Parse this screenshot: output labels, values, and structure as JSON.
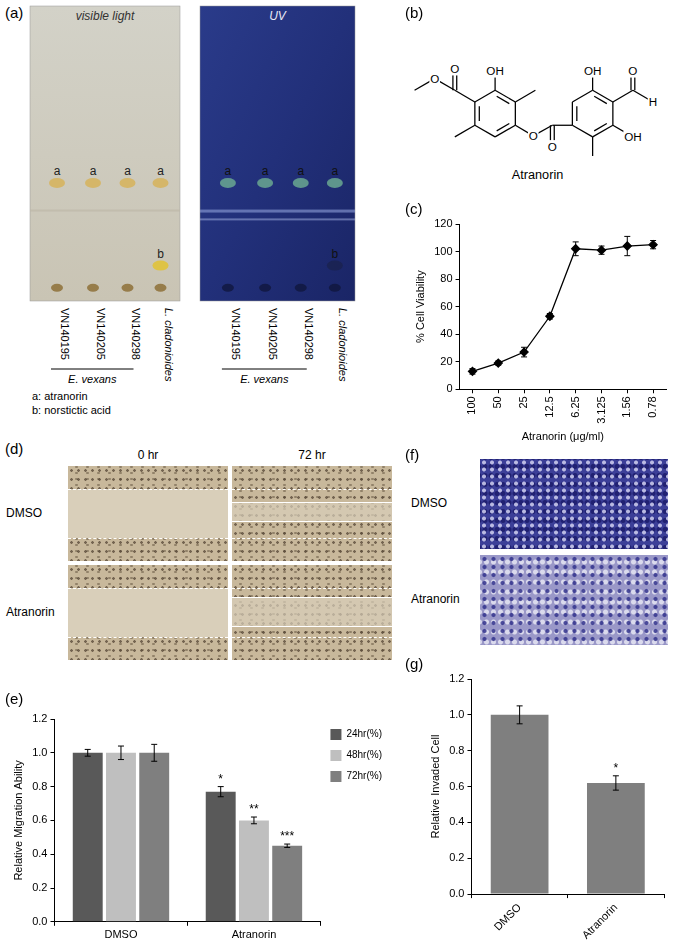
{
  "panel_labels": [
    "(a)",
    "(b)",
    "(c)",
    "(d)",
    "(e)",
    "(f)",
    "(g)"
  ],
  "tlc": {
    "panels": [
      "visible light",
      "UV"
    ],
    "lanes": [
      {
        "name": "VN140195",
        "spots": [
          "a"
        ]
      },
      {
        "name": "VN140205",
        "spots": [
          "a"
        ]
      },
      {
        "name": "VN140298",
        "spots": [
          "a"
        ]
      },
      {
        "name": "L. cladonioides",
        "spots": [
          "a",
          "b"
        ]
      }
    ],
    "group": {
      "name": "E. vexans",
      "members": [
        "VN140195",
        "VN140205",
        "VN140298"
      ]
    },
    "key": [
      "a: atranorin",
      "b: norstictic acid"
    ]
  },
  "structure": {
    "name": "Atranorin",
    "atoms": [
      "O",
      "O",
      "OH",
      "O",
      "O",
      "OH",
      "O",
      "H",
      "OH"
    ]
  },
  "wound": {
    "columns": [
      "0 hr",
      "72 hr"
    ],
    "rows": [
      "DMSO",
      "Atranorin"
    ]
  },
  "invasion": {
    "rows": [
      "DMSO",
      "Atranorin"
    ]
  },
  "chart_data": [
    {
      "type": "line",
      "categories": [
        "100",
        "50",
        "25",
        "12.5",
        "6.25",
        "3.125",
        "1.56",
        "0.78"
      ],
      "values": [
        13,
        19,
        27,
        53,
        102,
        101,
        104,
        105
      ],
      "errors": [
        2,
        1.5,
        3.5,
        2,
        5,
        3,
        7,
        3
      ],
      "color": "#000000",
      "marker": "diamond",
      "x_label": "Atranorin (μg/ml)",
      "y_label": "% Cell Viability",
      "ylim": [
        0,
        120
      ],
      "yticks": [
        0,
        20,
        40,
        60,
        80,
        100,
        120
      ],
      "grid": false
    },
    {
      "type": "bar",
      "categories": [
        "DMSO",
        "Atranorin"
      ],
      "series": [
        {
          "name": "24hr(%)",
          "color": "#595959",
          "values": [
            1.0,
            0.77
          ],
          "errors": [
            0.02,
            0.03
          ],
          "significance": [
            null,
            "*"
          ]
        },
        {
          "name": "48hr(%)",
          "color": "#bfbfbf",
          "values": [
            1.0,
            0.6
          ],
          "errors": [
            0.04,
            0.02
          ],
          "significance": [
            null,
            "**"
          ]
        },
        {
          "name": "72hr(%)",
          "color": "#7f7f7f",
          "values": [
            1.0,
            0.45
          ],
          "errors": [
            0.05,
            0.01
          ],
          "significance": [
            null,
            "***"
          ]
        }
      ],
      "y_label": "Relative Migration Ability",
      "ylim": [
        0,
        1.2
      ],
      "yticks": [
        {
          "value": 0,
          "label": "0.0"
        },
        0.2,
        0.4,
        0.6,
        0.8,
        {
          "value": 1,
          "label": "1.0"
        },
        1.2
      ],
      "legend": "top-right",
      "grid": false
    },
    {
      "type": "bar",
      "categories": [
        "DMSO",
        "Atranorin"
      ],
      "values": [
        1.0,
        0.62
      ],
      "errors": [
        0.05,
        0.04
      ],
      "significance": [
        null,
        "*"
      ],
      "color": "#7f7f7f",
      "y_label": "Relative Invaded Cell",
      "ylim": [
        0,
        1.2
      ],
      "yticks": [
        {
          "value": 0,
          "label": "0.0"
        },
        0.2,
        0.4,
        0.6,
        0.8,
        {
          "value": 1,
          "label": "1.0"
        },
        1.2
      ],
      "grid": false
    }
  ]
}
